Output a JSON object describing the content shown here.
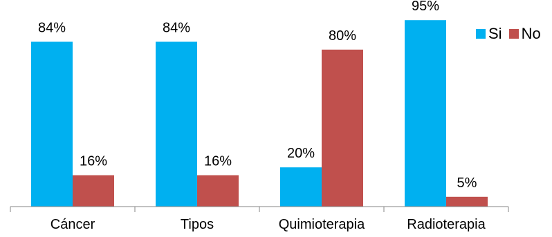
{
  "chart_data": {
    "type": "bar",
    "categories": [
      "Cáncer",
      "Tipos",
      "Quimioterapia",
      "Radioterapia"
    ],
    "series": [
      {
        "name": "Si",
        "values": [
          84,
          84,
          20,
          95
        ],
        "labels": [
          "84%",
          "84%",
          "20%",
          "95%"
        ],
        "color": "#00B0F0"
      },
      {
        "name": "No",
        "values": [
          16,
          16,
          80,
          5
        ],
        "labels": [
          "16%",
          "16%",
          "80%",
          "5%"
        ],
        "color": "#C0504D"
      }
    ],
    "ylim": [
      0,
      100
    ],
    "grid": false,
    "legend_position": "top-right",
    "title": "",
    "xlabel": "",
    "ylabel": ""
  }
}
